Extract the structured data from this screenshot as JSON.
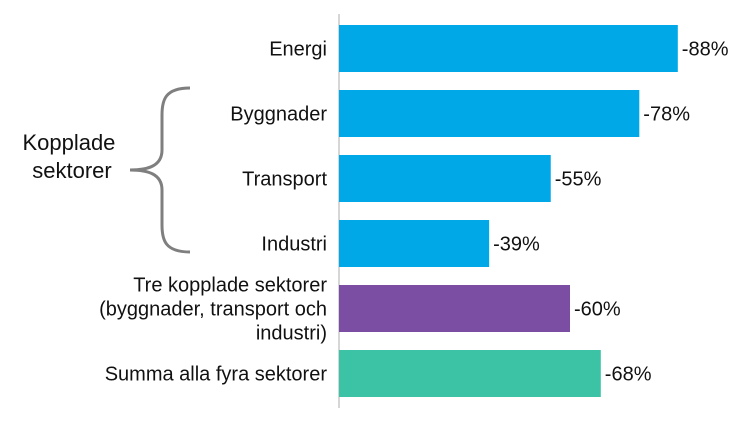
{
  "chart_data": {
    "type": "bar",
    "orientation": "horizontal",
    "categories": [
      "Energi",
      "Byggnader",
      "Transport",
      "Industri",
      "Tre kopplade sektorer (byggnader, transport och industri)",
      "Summa alla fyra sektorer"
    ],
    "category_lines": [
      [
        "Energi"
      ],
      [
        "Byggnader"
      ],
      [
        "Transport"
      ],
      [
        "Industri"
      ],
      [
        "Tre kopplade sektorer",
        "(byggnader, transport och",
        "industri)"
      ],
      [
        "Summa alla fyra sektorer"
      ]
    ],
    "values": [
      -88,
      -78,
      -55,
      -39,
      -60,
      -68
    ],
    "value_labels": [
      "-88%",
      "-78%",
      "-55%",
      "-39%",
      "-60%",
      "-68%"
    ],
    "bar_colors": [
      "#00a8e8",
      "#00a8e8",
      "#00a8e8",
      "#00a8e8",
      "#7b4ea3",
      "#3cc3a6"
    ],
    "group_label": [
      "Kopplade",
      "sektorer"
    ],
    "group_members": [
      "Byggnader",
      "Transport",
      "Industri"
    ],
    "title": "",
    "xlabel": "",
    "ylabel": "",
    "xlim": [
      0,
      -100
    ],
    "grid": false,
    "legend": "none"
  }
}
